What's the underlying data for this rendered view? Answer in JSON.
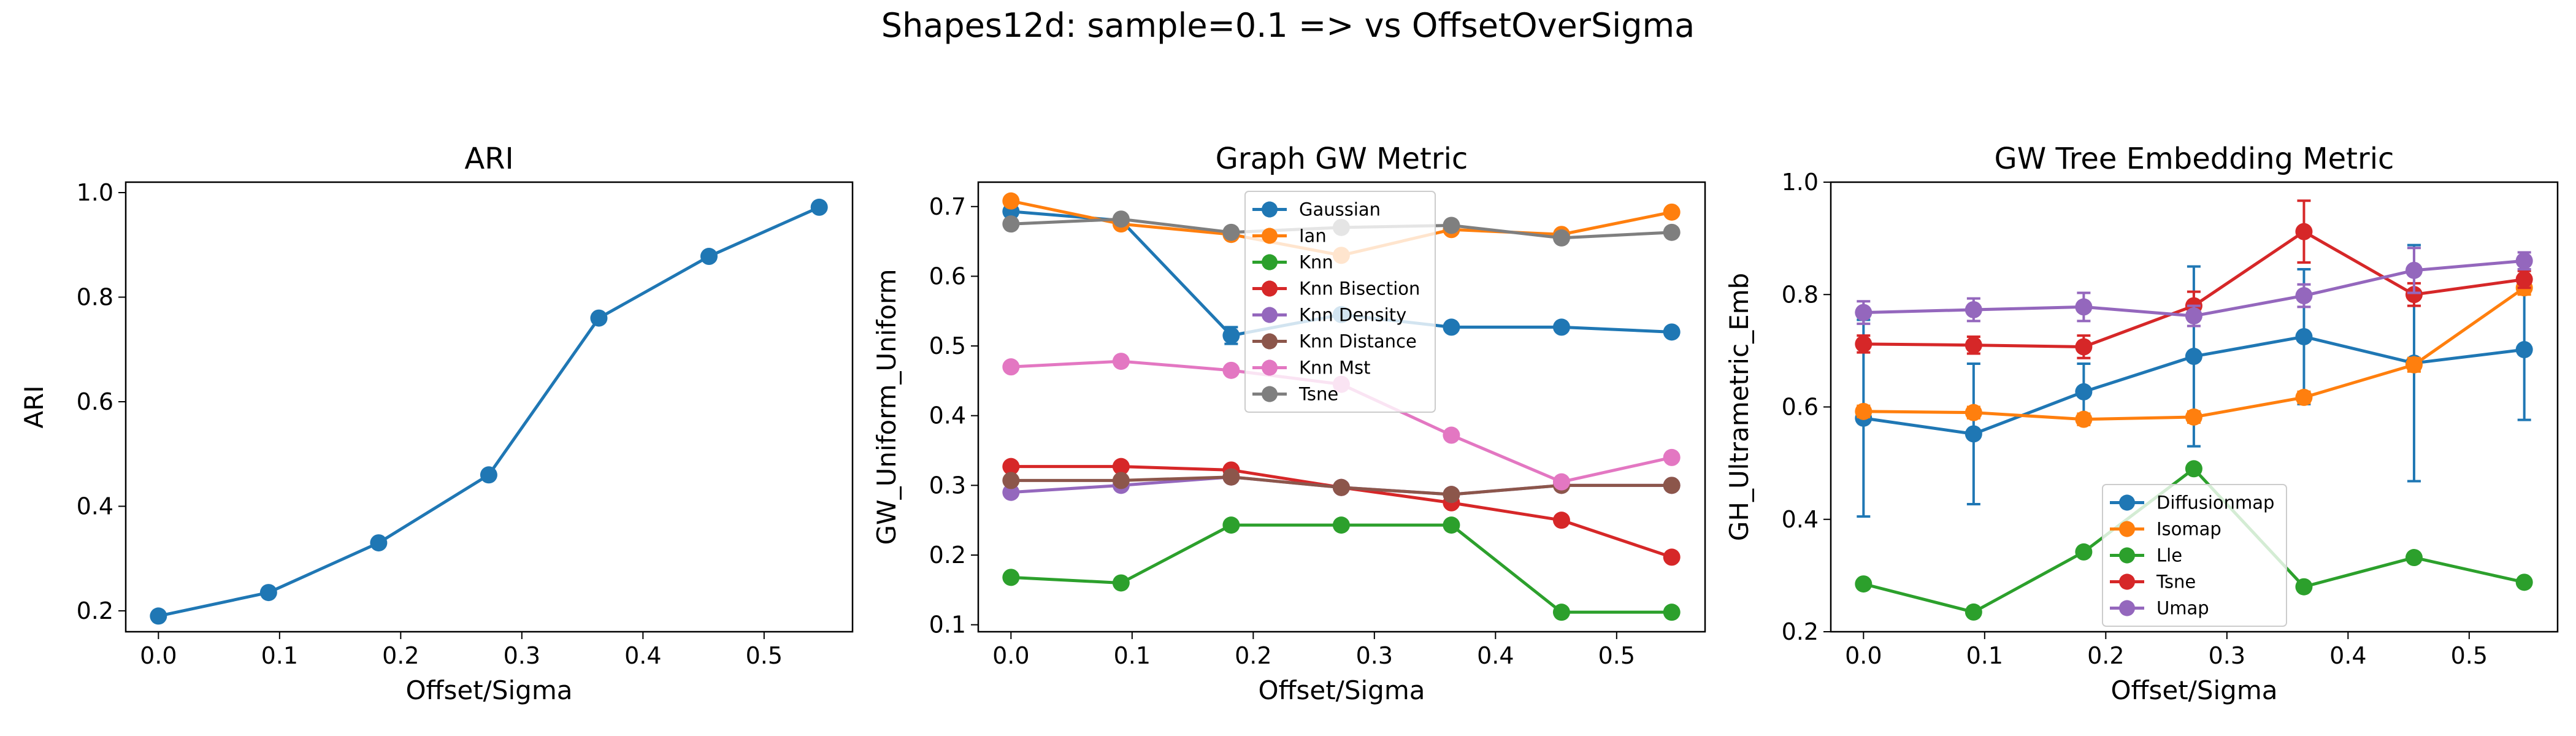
{
  "suptitle": "Shapes12d: sample=0.1 => vs OffsetOverSigma",
  "colors": {
    "blue": "#1f77b4",
    "orange": "#ff7f0e",
    "green": "#2ca02c",
    "red": "#d62728",
    "purple": "#9467bd",
    "brown": "#8c564b",
    "pink": "#e377c2",
    "gray": "#7f7f7f"
  },
  "chart_data": [
    {
      "type": "line",
      "title": "ARI",
      "xlabel": "Offset/Sigma",
      "ylabel": "ARI",
      "xlim": [
        -0.027,
        0.573
      ],
      "ylim": [
        0.16,
        1.02
      ],
      "xticks": [
        0.0,
        0.1,
        0.2,
        0.3,
        0.4,
        0.5
      ],
      "xtick_labels": [
        "0.0",
        "0.1",
        "0.2",
        "0.3",
        "0.4",
        "0.5"
      ],
      "yticks": [
        0.2,
        0.4,
        0.6,
        0.8,
        1.0
      ],
      "ytick_labels": [
        "0.2",
        "0.4",
        "0.6",
        "0.8",
        "1.0"
      ],
      "x": [
        0.0,
        0.0909,
        0.1818,
        0.2727,
        0.3636,
        0.4545,
        0.5455
      ],
      "series": [
        {
          "color": "blue",
          "values": [
            0.19,
            0.235,
            0.33,
            0.46,
            0.76,
            0.878,
            0.972
          ]
        }
      ],
      "legend": null
    },
    {
      "type": "line",
      "title": "Graph GW Metric",
      "xlabel": "Offset/Sigma",
      "ylabel": "GW_Uniform_Uniform",
      "xlim": [
        -0.027,
        0.573
      ],
      "ylim": [
        0.09,
        0.735
      ],
      "xticks": [
        0.0,
        0.1,
        0.2,
        0.3,
        0.4,
        0.5
      ],
      "xtick_labels": [
        "0.0",
        "0.1",
        "0.2",
        "0.3",
        "0.4",
        "0.5"
      ],
      "yticks": [
        0.1,
        0.2,
        0.3,
        0.4,
        0.5,
        0.6,
        0.7
      ],
      "ytick_labels": [
        "0.1",
        "0.2",
        "0.3",
        "0.4",
        "0.5",
        "0.6",
        "0.7"
      ],
      "x": [
        0.0,
        0.0909,
        0.1818,
        0.2727,
        0.3636,
        0.4545,
        0.5455
      ],
      "series": [
        {
          "name": "Gaussian",
          "color": "blue",
          "values": [
            0.693,
            0.68,
            0.515,
            0.545,
            0.527,
            0.527,
            0.52
          ],
          "err": [
            0.006,
            0.005,
            0.012,
            0.006,
            0.004,
            0.004,
            0.004
          ]
        },
        {
          "name": "Ian",
          "color": "orange",
          "values": [
            0.708,
            0.675,
            0.66,
            0.63,
            0.667,
            0.66,
            0.692
          ],
          "err": [
            0.005,
            0.004,
            0.004,
            0.005,
            0.004,
            0.004,
            0.004
          ]
        },
        {
          "name": "Knn",
          "color": "green",
          "values": [
            0.168,
            0.16,
            0.243,
            0.243,
            0.243,
            0.118,
            0.118
          ],
          "err": [
            0.003,
            0.003,
            0.003,
            0.003,
            0.003,
            0.003,
            0.003
          ]
        },
        {
          "name": "Knn Bisection",
          "color": "red",
          "values": [
            0.327,
            0.327,
            0.322,
            0.297,
            0.275,
            0.25,
            0.197
          ],
          "err": [
            0.003,
            0.003,
            0.003,
            0.003,
            0.003,
            0.003,
            0.003
          ]
        },
        {
          "name": "Knn Density",
          "color": "purple",
          "values": [
            0.29,
            0.3,
            0.312,
            0.297,
            0.287,
            0.3,
            0.3
          ],
          "err": [
            0.003,
            0.003,
            0.003,
            0.003,
            0.003,
            0.003,
            0.003
          ]
        },
        {
          "name": "Knn Distance",
          "color": "brown",
          "values": [
            0.307,
            0.307,
            0.312,
            0.297,
            0.287,
            0.3,
            0.3
          ],
          "err": [
            0.003,
            0.003,
            0.003,
            0.003,
            0.003,
            0.003,
            0.003
          ]
        },
        {
          "name": "Knn Mst",
          "color": "pink",
          "values": [
            0.47,
            0.478,
            0.465,
            0.445,
            0.372,
            0.305,
            0.34
          ],
          "err": [
            0.004,
            0.004,
            0.004,
            0.004,
            0.004,
            0.004,
            0.004
          ]
        },
        {
          "name": "Tsne",
          "color": "gray",
          "values": [
            0.675,
            0.682,
            0.663,
            0.67,
            0.673,
            0.655,
            0.663
          ],
          "err": [
            0.004,
            0.004,
            0.004,
            0.004,
            0.004,
            0.004,
            0.004
          ]
        }
      ],
      "legend": "top-center"
    },
    {
      "type": "line",
      "title": "GW Tree Embedding Metric",
      "xlabel": "Offset/Sigma",
      "ylabel": "GH_Ultrametric_Emb",
      "xlim": [
        -0.027,
        0.573
      ],
      "ylim": [
        0.2,
        1.0
      ],
      "xticks": [
        0.0,
        0.1,
        0.2,
        0.3,
        0.4,
        0.5
      ],
      "xtick_labels": [
        "0.0",
        "0.1",
        "0.2",
        "0.3",
        "0.4",
        "0.5"
      ],
      "yticks": [
        0.2,
        0.4,
        0.6,
        0.8,
        1.0
      ],
      "ytick_labels": [
        "0.2",
        "0.4",
        "0.6",
        "0.8",
        "1.0"
      ],
      "x": [
        0.0,
        0.0909,
        0.1818,
        0.2727,
        0.3636,
        0.4545,
        0.5455
      ],
      "series": [
        {
          "name": "Diffusionmap",
          "color": "blue",
          "values": [
            0.58,
            0.552,
            0.627,
            0.69,
            0.725,
            0.678,
            0.702
          ],
          "err": [
            0.175,
            0.125,
            0.05,
            0.16,
            0.12,
            0.21,
            0.125
          ]
        },
        {
          "name": "Isomap",
          "color": "orange",
          "values": [
            0.592,
            0.59,
            0.578,
            0.582,
            0.617,
            0.675,
            0.812
          ],
          "err": [
            0.01,
            0.01,
            0.01,
            0.01,
            0.01,
            0.012,
            0.012
          ]
        },
        {
          "name": "Lle",
          "color": "green",
          "values": [
            0.285,
            0.235,
            0.342,
            0.49,
            0.28,
            0.332,
            0.288
          ],
          "err": [
            0.006,
            0.006,
            0.006,
            0.006,
            0.006,
            0.006,
            0.006
          ]
        },
        {
          "name": "Tsne",
          "color": "red",
          "values": [
            0.712,
            0.71,
            0.707,
            0.78,
            0.912,
            0.8,
            0.827
          ],
          "err": [
            0.015,
            0.015,
            0.02,
            0.025,
            0.055,
            0.02,
            0.015
          ]
        },
        {
          "name": "Umap",
          "color": "purple",
          "values": [
            0.768,
            0.773,
            0.778,
            0.762,
            0.798,
            0.843,
            0.86
          ],
          "err": [
            0.02,
            0.02,
            0.025,
            0.018,
            0.02,
            0.04,
            0.015
          ]
        }
      ],
      "legend": "bottom-center"
    }
  ]
}
